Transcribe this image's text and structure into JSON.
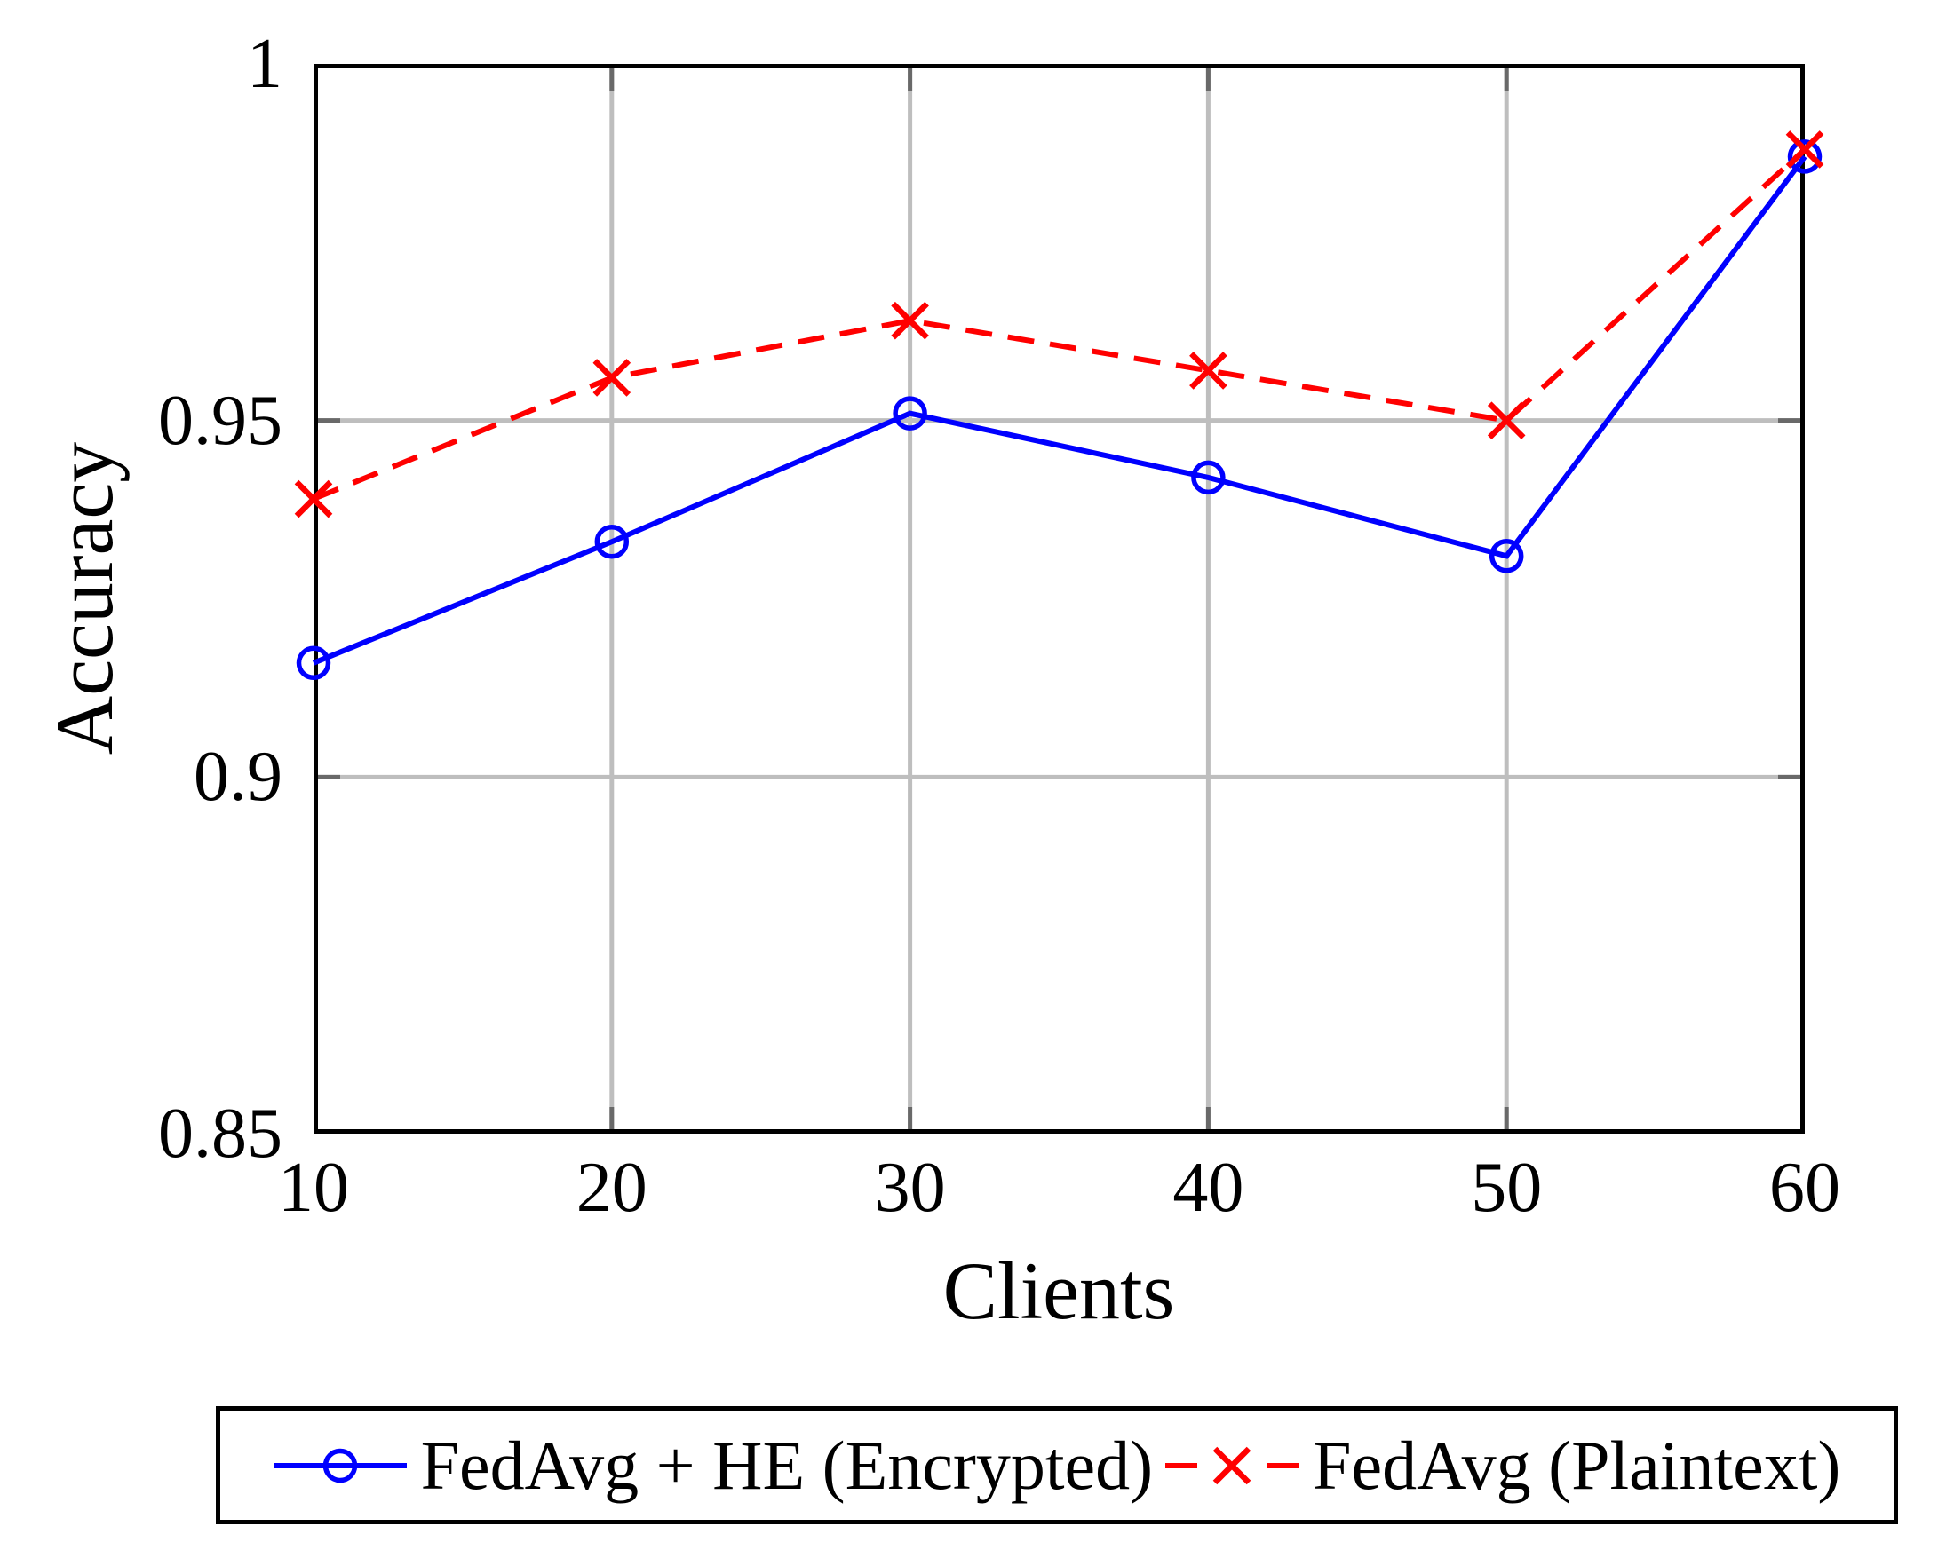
{
  "chart_data": {
    "type": "line",
    "x": [
      10,
      20,
      30,
      40,
      50,
      60
    ],
    "series": [
      {
        "name": "FedAvg + HE (Encrypted)",
        "values": [
          0.916,
          0.933,
          0.951,
          0.942,
          0.931,
          0.987
        ],
        "color": "#0000FF",
        "marker": "circle",
        "line_style": "solid"
      },
      {
        "name": "FedAvg (Plaintext)",
        "values": [
          0.939,
          0.956,
          0.964,
          0.957,
          0.95,
          0.988
        ],
        "color": "#FF0000",
        "marker": "x",
        "line_style": "dashed"
      }
    ],
    "title": "",
    "xlabel": "Clients",
    "ylabel": "Accuracy",
    "xlim": [
      10,
      60
    ],
    "ylim": [
      0.85,
      1.0
    ],
    "xticks": [
      10,
      20,
      30,
      40,
      50,
      60
    ],
    "xtick_labels": [
      "10",
      "20",
      "30",
      "40",
      "50",
      "60"
    ],
    "yticks": [
      0.85,
      0.9,
      0.95,
      1.0
    ],
    "ytick_labels": [
      "0.85",
      "0.9",
      "0.95",
      "1"
    ],
    "grid": true,
    "legend_position": "below"
  },
  "colors": {
    "grid": "#BEBEBE",
    "tick": "#696969",
    "axis": "#000000",
    "background": "#FFFFFF"
  }
}
